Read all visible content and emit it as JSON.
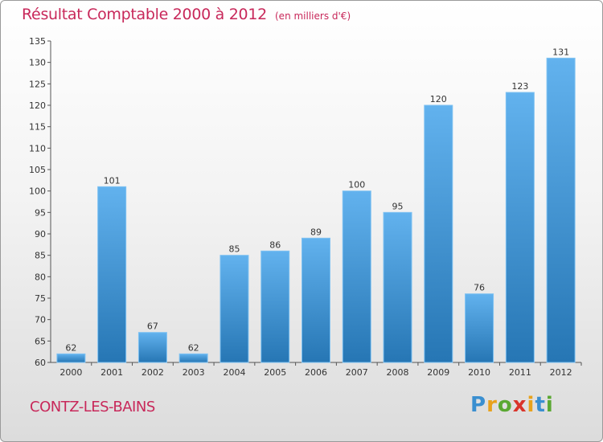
{
  "header": {
    "title": "Résultat Comptable 2000 à 2012",
    "subtitle": "(en milliers d'€)"
  },
  "footer": {
    "place": "CONTZ-LES-BAINS",
    "brand_letters": [
      "P",
      "r",
      "o",
      "x",
      "i",
      "t",
      "i"
    ],
    "brand_colors": [
      "#3a8fd0",
      "#e8a21c",
      "#5aa832",
      "#d9342b",
      "#e8a21c",
      "#3a8fd0",
      "#5aa832"
    ]
  },
  "colors": {
    "title": "#c8285a",
    "bar_top": "#62b2ee",
    "bar_bottom": "#2676b4",
    "axis": "#555555"
  },
  "chart_data": {
    "type": "bar",
    "title": "Résultat Comptable 2000 à 2012",
    "subtitle": "(en milliers d'€)",
    "xlabel": "",
    "ylabel": "",
    "categories": [
      "2000",
      "2001",
      "2002",
      "2003",
      "2004",
      "2005",
      "2006",
      "2007",
      "2008",
      "2009",
      "2010",
      "2011",
      "2012"
    ],
    "values": [
      62,
      101,
      67,
      62,
      85,
      86,
      89,
      100,
      95,
      120,
      76,
      123,
      131
    ],
    "ylim": [
      60,
      135
    ],
    "yticks": [
      60,
      65,
      70,
      75,
      80,
      85,
      90,
      95,
      100,
      105,
      110,
      115,
      120,
      125,
      130,
      135
    ],
    "grid": false,
    "data_labels": true
  }
}
